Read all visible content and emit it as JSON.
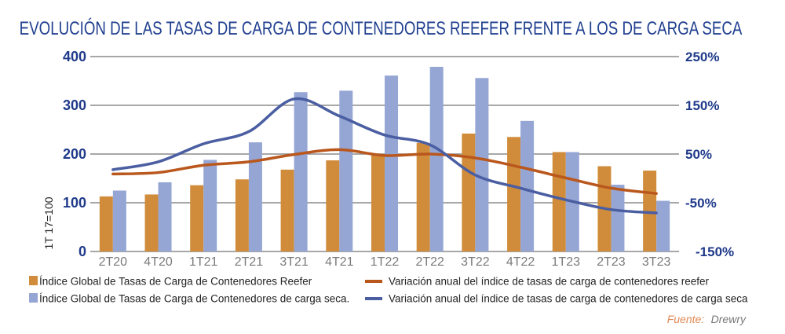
{
  "chart_data": {
    "type": "bar",
    "title": "EVOLUCIÓN DE LAS TASAS DE CARGA DE CONTENEDORES REEFER FRENTE A LOS DE CARGA SECA",
    "xlabel": "",
    "ylabel": "1T 17=100",
    "y2label": "",
    "categories": [
      "2T20",
      "4T20",
      "1T21",
      "2T21",
      "3T21",
      "4T21",
      "1T22",
      "2T22",
      "3T22",
      "4T22",
      "1T23",
      "2T23",
      "3T23"
    ],
    "ylim": [
      0,
      400
    ],
    "yticks": [
      0,
      100,
      200,
      300,
      400
    ],
    "ytick_labels": [
      "0",
      "100",
      "200",
      "300",
      "400"
    ],
    "y2lim": [
      -150,
      250
    ],
    "y2ticks": [
      -150,
      -50,
      50,
      150,
      250
    ],
    "y2tick_labels": [
      "-150%",
      "-50%",
      "50%",
      "150%",
      "250%"
    ],
    "grid": true,
    "legend_position": "bottom",
    "series": [
      {
        "name": "Índice Global de Tasas de Carga de Contenedores Reefer",
        "type": "bar",
        "axis": "left",
        "color": "#d08c3a",
        "values": [
          113,
          117,
          136,
          148,
          168,
          187,
          200,
          223,
          242,
          235,
          204,
          175,
          166
        ]
      },
      {
        "name": "Índice Global de Tasas de Carga de Contenedores de carga seca.",
        "type": "bar",
        "axis": "left",
        "color": "#95a6d5",
        "values": [
          125,
          142,
          188,
          224,
          327,
          330,
          361,
          379,
          356,
          268,
          204,
          137,
          104
        ]
      },
      {
        "name": "Variación anual del índice de tasas de carga de contenedores reefer",
        "type": "line",
        "axis": "right",
        "unit": "%",
        "color": "#b9571d",
        "values": [
          9,
          12,
          27,
          34,
          49,
          59,
          47,
          50,
          42,
          23,
          1,
          -20,
          -31
        ]
      },
      {
        "name": "Variación anual del índice de tasas de carga de contenedores de carga seca",
        "type": "line",
        "axis": "right",
        "unit": "%",
        "color": "#4a5ea1",
        "values": [
          18,
          34,
          71,
          96,
          163,
          128,
          89,
          69,
          7,
          -20,
          -44,
          -64,
          -71
        ]
      }
    ],
    "source_label": "Fuente:",
    "source_value": "Drewry"
  },
  "colors": {
    "title": "#1f3f8f",
    "axis_ticks": "#1f3a8a",
    "gridline": "#8c8c8c",
    "x_tick": "#7a7a7a",
    "source_key": "#e08a55"
  }
}
